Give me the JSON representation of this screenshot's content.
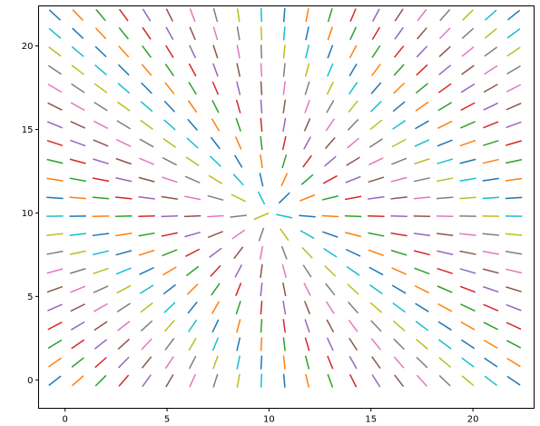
{
  "chart_data": {
    "type": "line",
    "title": "",
    "xlabel": "",
    "ylabel": "",
    "xlim": [
      -1.3,
      23.0
    ],
    "ylim": [
      -1.7,
      22.4
    ],
    "grid": false,
    "legend": "none",
    "xticks": [
      0,
      5,
      10,
      15,
      20
    ],
    "yticks": [
      0,
      5,
      10,
      15,
      20
    ],
    "field": {
      "center": [
        10,
        10
      ],
      "grid_x_start": -0.5,
      "grid_x_step": 1.125,
      "grid_x_count": 21,
      "grid_y_start": -0.05,
      "grid_y_step": 1.095,
      "grid_y_count": 21,
      "segment_length": 0.82,
      "direction": "radial from center"
    },
    "palette": [
      "#1f77b4",
      "#ff7f0e",
      "#2ca02c",
      "#d62728",
      "#9467bd",
      "#8c564b",
      "#e377c2",
      "#7f7f7f",
      "#bcbd22",
      "#17becf"
    ]
  }
}
